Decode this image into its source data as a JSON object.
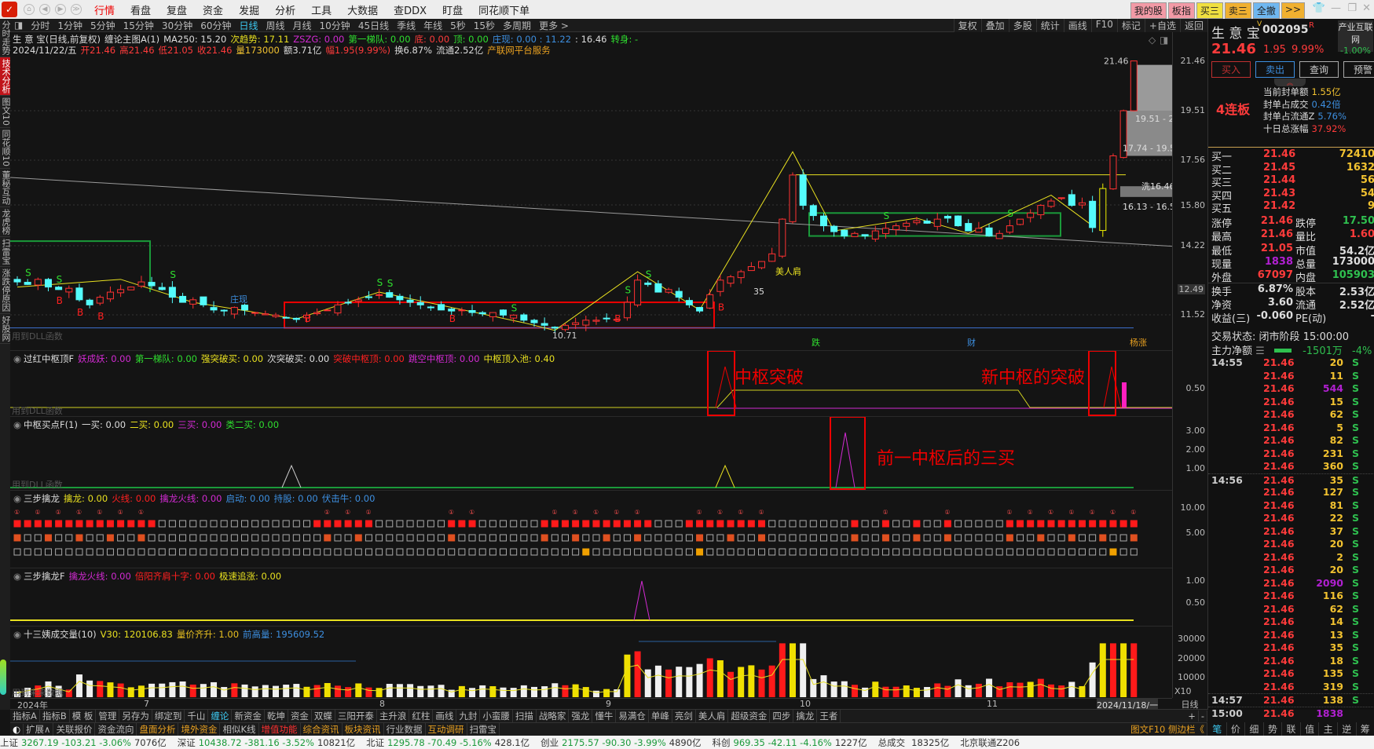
{
  "app": {
    "logo": "同花顺",
    "menus": [
      "行情",
      "看盘",
      "复盘",
      "资金",
      "发掘",
      "分析",
      "工具",
      "大数据",
      "查DDX",
      "盯盘",
      "同花顺下单"
    ],
    "active_menu": 0,
    "top_buttons": [
      {
        "label": "我的股",
        "bg": "#f29aa6"
      },
      {
        "label": "板指",
        "bg": "#f29aa6"
      },
      {
        "label": "买三",
        "bg": "#f0e040"
      },
      {
        "label": "卖三",
        "bg": "#f0b030"
      },
      {
        "label": "全撤",
        "bg": "#6fb7f0"
      },
      {
        "label": ">>",
        "bg": "#f0b030"
      }
    ]
  },
  "periods": [
    "分时",
    "1分钟",
    "5分钟",
    "15分钟",
    "30分钟",
    "60分钟",
    "日线",
    "周线",
    "月线",
    "10分钟",
    "45日线",
    "季线",
    "年线",
    "5秒",
    "15秒",
    "多周期",
    "更多 >"
  ],
  "active_period": "日线",
  "chart_tools": [
    "复权",
    "叠加",
    "多股",
    "统计",
    "画线",
    "F10",
    "标记",
    "+自选",
    "返回"
  ],
  "left_tabs": [
    {
      "label": "分时走势"
    },
    {
      "label": "技术分析",
      "active": true
    },
    {
      "label": "图文10"
    },
    {
      "label": "同花顺10"
    },
    {
      "label": "董秘互动"
    },
    {
      "label": "龙虎榜"
    },
    {
      "label": "扫雷宝"
    },
    {
      "label": "涨跌停原因"
    },
    {
      "label": "好股网"
    }
  ],
  "header": {
    "line1": [
      {
        "t": "生 意 宝(日线,前复权)",
        "c": "#ddd"
      },
      {
        "t": "缠论主图A(1)",
        "c": "#ddd"
      },
      {
        "t": "MA250: 15.20",
        "c": "#ddd"
      },
      {
        "t": "次趋势: 17.11",
        "c": "#e8e020"
      },
      {
        "t": "ZSZG: 0.00",
        "c": "#d22ad2"
      },
      {
        "t": "第一梯队: 0.00",
        "c": "#2fdf2f"
      },
      {
        "t": "底: 0.00",
        "c": "#ff3b3b"
      },
      {
        "t": "顶: 0.00",
        "c": "#2fdf2f"
      },
      {
        "t": "庄现: 0.00 : 11.22",
        "c": "#3d8fe0"
      },
      {
        "t": ": 16.46",
        "c": "#ddd"
      },
      {
        "t": "转身: -",
        "c": "#2fdf2f"
      }
    ],
    "line2": [
      {
        "t": "2024/11/22/五",
        "c": "#ddd"
      },
      {
        "t": "开21.46",
        "c": "#ff3b3b"
      },
      {
        "t": "高21.46",
        "c": "#ff3b3b"
      },
      {
        "t": "低21.05",
        "c": "#ff3b3b"
      },
      {
        "t": "收21.46",
        "c": "#ff3b3b"
      },
      {
        "t": "量173000",
        "c": "#f2c230"
      },
      {
        "t": "额3.71亿",
        "c": "#ddd"
      },
      {
        "t": "幅1.95(9.99%)",
        "c": "#ff3b3b"
      },
      {
        "t": "换6.87%",
        "c": "#ddd"
      },
      {
        "t": "流通2.52亿",
        "c": "#ddd"
      },
      {
        "t": "产联网平台服务",
        "c": "#e8a020"
      }
    ]
  },
  "main_chart": {
    "price_axis": [
      "21.46",
      "19.51",
      "17.56",
      "15.80",
      "14.22",
      "12.49",
      "11.52"
    ],
    "closes": [
      12.8,
      12.7,
      12.9,
      12.6,
      12.5,
      12.55,
      12.1,
      11.9,
      12.2,
      12.4,
      12.5,
      12.6,
      12.8,
      12.65,
      12.5,
      12.2,
      12.0,
      12.1,
      11.9,
      11.7,
      11.66,
      11.8,
      11.7,
      11.6,
      11.55,
      11.5,
      11.4,
      11.33,
      11.5,
      11.6,
      11.7,
      11.9,
      12.0,
      12.1,
      12.2,
      12.3,
      12.2,
      12.1,
      12.0,
      11.9,
      11.8,
      11.7,
      11.66,
      11.7,
      11.6,
      11.55,
      11.6,
      11.5,
      11.5,
      11.3,
      11.2,
      11.1,
      10.99,
      11.1,
      11.2,
      11.3,
      11.3,
      11.35,
      11.33,
      12.0,
      12.87,
      12.7,
      12.4,
      12.5,
      12.2,
      11.9,
      11.66,
      12.3,
      12.87,
      13.0,
      13.2,
      13.4,
      13.6,
      13.9,
      15.26,
      16.99,
      15.8,
      15.4,
      15.0,
      14.77,
      14.6,
      14.7,
      14.6,
      14.8,
      14.9,
      15.0,
      15.1,
      15.2,
      15.1,
      15.26,
      15.3,
      15.0,
      14.8,
      14.9,
      14.6,
      14.7,
      15.0,
      15.26,
      15.5,
      15.8,
      15.97,
      16.1,
      15.8,
      15.9,
      14.93,
      16.46,
      17.74,
      19.51,
      21.46
    ],
    "ma250": [
      15.97,
      14.2
    ],
    "labels": {
      "low": "10.71",
      "last": "21.46",
      "zone1": "19.51 - 21.",
      "zone2": "17.74 - 19.51",
      "wash": "洗16.46",
      "zone3": "16.13 - 16.55",
      "shoulder": "美人肩",
      "mark35": "35",
      "zhuang": "庄现",
      "fall": "跌",
      "cai": "财",
      "up": "杨涨",
      "dll": "用到DLL函数"
    }
  },
  "panes": {
    "p1": {
      "title": "过红中枢顶F",
      "items": [
        {
          "t": "妖成妖: 0.00",
          "c": "#d22ad2"
        },
        {
          "t": "第一梯队: 0.00",
          "c": "#2fdf2f"
        },
        {
          "t": "强突破买: 0.00",
          "c": "#e8e020"
        },
        {
          "t": "次突破买: 0.00",
          "c": "#ddd"
        },
        {
          "t": "突破中枢顶: 0.00",
          "c": "#ff2020"
        },
        {
          "t": "跳空中枢顶: 0.00",
          "c": "#d22ad2"
        },
        {
          "t": "中枢顶入池: 0.40",
          "c": "#e8e020"
        }
      ],
      "axis": [
        "0.50"
      ],
      "note1": "中枢突破",
      "note2": "新中枢的突破"
    },
    "p2": {
      "title": "中枢买点F(1)",
      "items": [
        {
          "t": "一买: 0.00",
          "c": "#ddd"
        },
        {
          "t": "二买: 0.00",
          "c": "#e8e020"
        },
        {
          "t": "三买: 0.00",
          "c": "#d22ad2"
        },
        {
          "t": "类二买: 0.00",
          "c": "#2fdf2f"
        }
      ],
      "axis": [
        "3.00",
        "2.00",
        "1.00"
      ],
      "note": "前一中枢后的三买"
    },
    "p3": {
      "title": "三步擒龙",
      "items": [
        {
          "t": "擒龙: 0.00",
          "c": "#e8e020"
        },
        {
          "t": "火线: 0.00",
          "c": "#ff2020"
        },
        {
          "t": "擒龙火线: 0.00",
          "c": "#d22ad2"
        },
        {
          "t": "启动: 0.00",
          "c": "#3d8fe0"
        },
        {
          "t": "持股: 0.00",
          "c": "#3d8fe0"
        },
        {
          "t": "伏击牛: 0.00",
          "c": "#3d8fe0"
        }
      ],
      "axis": [
        "10.00",
        "5.00"
      ]
    },
    "p4": {
      "title": "三步擒龙F",
      "items": [
        {
          "t": "擒龙火线: 0.00",
          "c": "#d22ad2"
        },
        {
          "t": "倍阳齐肩十字: 0.00",
          "c": "#ff2020"
        },
        {
          "t": "极速追涨: 0.00",
          "c": "#e8e020"
        }
      ],
      "axis": [
        "1.00",
        "0.50"
      ]
    },
    "vol": {
      "title": "十三姨成交量(10)",
      "items": [
        {
          "t": "V30: 120106.83",
          "c": "#e8e020"
        },
        {
          "t": "量价齐升: 1.00",
          "c": "#e8c020"
        },
        {
          "t": "前高量: 195609.52",
          "c": "#3d8fe0"
        }
      ],
      "axis": [
        "30000",
        "20000",
        "10000"
      ],
      "unit": "X10",
      "note": "用到未来数据"
    }
  },
  "date_axis": {
    "labels": [
      "2024年",
      "7",
      "8",
      "9",
      "10",
      "11"
    ],
    "cursor_date": "2024/11/18/一",
    "period": "日线"
  },
  "quote": {
    "name": "生 意 宝",
    "code": "002095",
    "flag_v": "V",
    "flag_r": "R",
    "sector": "产业互联网",
    "sector_chg": "-1.00%",
    "price": "21.46",
    "change": "1.95",
    "pct": "9.99%",
    "buttons": [
      "买入",
      "卖出",
      "查询",
      "预警"
    ],
    "streak": "4连板",
    "seal": [
      {
        "k": "当前封单额",
        "v": "1.55亿",
        "c": "#f2c230"
      },
      {
        "k": "封单占成交",
        "v": "0.42倍",
        "c": "#3d8fe0"
      },
      {
        "k": "封单占流通Z",
        "v": "5.76%",
        "c": "#3d8fe0"
      },
      {
        "k": "十日总涨幅",
        "v": "37.92%",
        "c": "#ff3b3b"
      }
    ],
    "bids": [
      {
        "k": "买一",
        "p": "21.46",
        "v": "72410"
      },
      {
        "k": "买二",
        "p": "21.45",
        "v": "1632"
      },
      {
        "k": "买三",
        "p": "21.44",
        "v": "56"
      },
      {
        "k": "买四",
        "p": "21.43",
        "v": "54"
      },
      {
        "k": "买五",
        "p": "21.42",
        "v": "9"
      }
    ],
    "stats": [
      {
        "k1": "涨停",
        "v1": "21.46",
        "c1": "#ff3b3b",
        "k2": "跌停",
        "v2": "17.50",
        "c2": "#2fbf4f"
      },
      {
        "k1": "最高",
        "v1": "21.46",
        "c1": "#ff3b3b",
        "k2": "量比",
        "v2": "1.60",
        "c2": "#ff3b3b"
      },
      {
        "k1": "最低",
        "v1": "21.05",
        "c1": "#ff3b3b",
        "k2": "市值",
        "v2": "54.2亿",
        "c2": "#ddd"
      },
      {
        "k1": "现量",
        "v1": "1838",
        "c1": "#b020d0",
        "k2": "总量",
        "v2": "173000",
        "c2": "#ddd"
      },
      {
        "k1": "外盘",
        "v1": "67097",
        "c1": "#ff3b3b",
        "k2": "内盘",
        "v2": "105903",
        "c2": "#2fbf4f"
      },
      {
        "k1": "换手",
        "v1": "6.87%",
        "c1": "#ddd",
        "k2": "股本",
        "v2": "2.53亿",
        "c2": "#ddd"
      },
      {
        "k1": "净资",
        "v1": "3.60",
        "c1": "#ddd",
        "k2": "流通",
        "v2": "2.52亿",
        "c2": "#ddd"
      },
      {
        "k1": "收益(三)",
        "v1": "-0.060",
        "c1": "#ddd",
        "k2": "PE(动)",
        "v2": "-",
        "c2": "#ddd"
      }
    ],
    "trade_state_label": "交易状态:",
    "trade_state": "闭市阶段",
    "trade_time": "15:00:00",
    "main_net_label": "主力净额",
    "main_net": "-1501万",
    "main_net_pct": "-4%",
    "ticks": [
      {
        "time": "14:55",
        "vol": "20"
      },
      {
        "vol": "11"
      },
      {
        "vol": "544",
        "big": true
      },
      {
        "vol": "15"
      },
      {
        "vol": "62"
      },
      {
        "vol": "5"
      },
      {
        "vol": "82"
      },
      {
        "vol": "231"
      },
      {
        "vol": "360"
      },
      {
        "time": "14:56",
        "vol": "35"
      },
      {
        "vol": "127"
      },
      {
        "vol": "81"
      },
      {
        "vol": "22"
      },
      {
        "vol": "37"
      },
      {
        "vol": "20"
      },
      {
        "vol": "2"
      },
      {
        "vol": "20"
      },
      {
        "vol": "2090",
        "big": true
      },
      {
        "vol": "116"
      },
      {
        "vol": "62"
      },
      {
        "vol": "14"
      },
      {
        "vol": "13"
      },
      {
        "vol": "35"
      },
      {
        "vol": "18"
      },
      {
        "vol": "135"
      },
      {
        "vol": "319"
      },
      {
        "time": "14:57",
        "vol": "138"
      },
      {
        "time": "15:00",
        "vol": "1838",
        "big": true,
        "nos": true
      }
    ],
    "tick_price": "21.46",
    "tick_side": "S",
    "bottom_tabs": [
      "笔",
      "价",
      "细",
      "势",
      "联",
      "值",
      "主",
      "逆",
      "筹"
    ]
  },
  "bottom": {
    "row1": [
      "指标A",
      "指标B",
      "模 板",
      "管理",
      "另存为",
      "绑定到",
      "千山",
      "缠论",
      "新资金",
      "乾坤",
      "资金",
      "双蝶",
      "三阳开泰",
      "主升浪",
      "红柱",
      "画线",
      "九封",
      "小蛮腰",
      "扫描",
      "战略家",
      "强龙",
      "懂牛",
      "易满仓",
      "单峰",
      "亮剑",
      "美人肩",
      "超级资金",
      "四步",
      "擒龙",
      "王者"
    ],
    "row1_active": "缠论",
    "zoom_in": "+",
    "zoom_out": "-",
    "row2": [
      {
        "t": "扩展∧",
        "c": "#bbb"
      },
      {
        "t": "关联报价",
        "c": "#bbb"
      },
      {
        "t": "资金流向",
        "c": "#bbb"
      },
      {
        "t": "盘面分析",
        "c": "#e8a020"
      },
      {
        "t": "境外资金",
        "c": "#e8a020"
      },
      {
        "t": "相似K线",
        "c": "#bbb"
      },
      {
        "t": "增值功能",
        "c": "#ff3030"
      },
      {
        "t": "综合资讯",
        "c": "#e8a020"
      },
      {
        "t": "板块资讯",
        "c": "#e8a020"
      },
      {
        "t": "行业数据",
        "c": "#bbb"
      },
      {
        "t": "互动调研",
        "c": "#e8a020"
      },
      {
        "t": "扫雷宝",
        "c": "#bbb"
      }
    ],
    "side": "图文F10 侧边栏《"
  },
  "status": [
    {
      "n": "上证",
      "v": "3267.19 -103.21 -3.06%",
      "a": "7076亿"
    },
    {
      "n": "深证",
      "v": "10438.72 -381.16 -3.52%",
      "a": "10821亿"
    },
    {
      "n": "北证",
      "v": "1295.78 -70.49 -5.16%",
      "a": "428.1亿"
    },
    {
      "n": "创业",
      "v": "2175.57 -90.30 -3.99%",
      "a": "4890亿"
    },
    {
      "n": "科创",
      "v": "969.35 -42.11 -4.16%",
      "a": "1227亿"
    },
    {
      "n": "总成交",
      "v": "",
      "a": "18325亿"
    },
    {
      "n": "北京联通Z206",
      "v": "",
      "a": ""
    }
  ],
  "colors": {
    "up": "#ff3232",
    "down": "#54fcfc",
    "ma250": "#9a9a9a",
    "zigzag": "#e8e020",
    "accent": "#c0141a"
  }
}
